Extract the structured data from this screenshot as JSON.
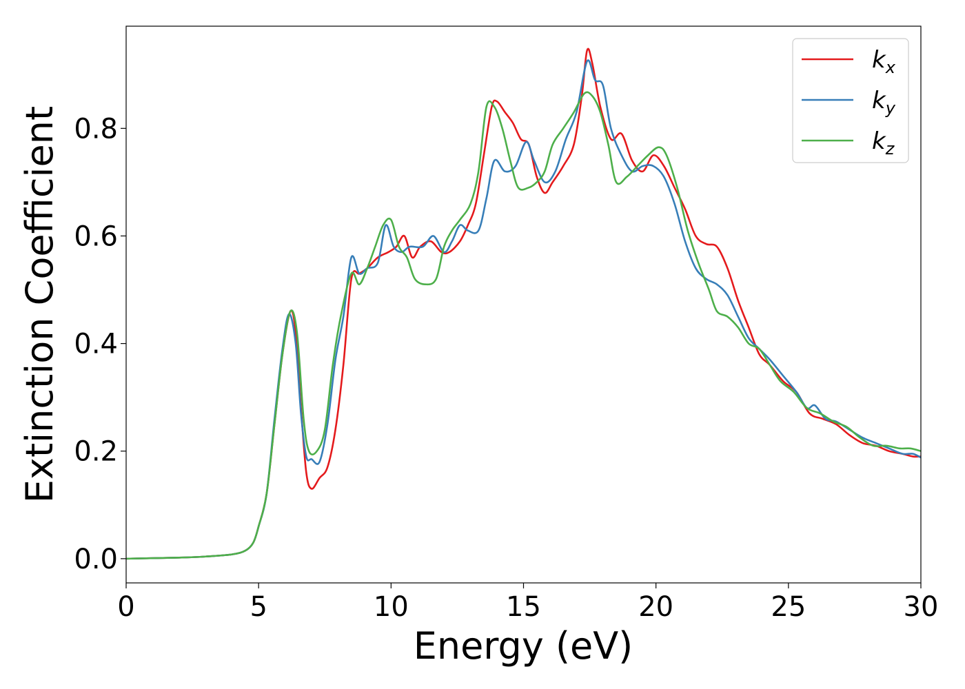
{
  "chart_data": {
    "type": "line",
    "title": "",
    "xlabel": "Energy (eV)",
    "ylabel": "Extinction Coefficient",
    "xlim": [
      0,
      30
    ],
    "ylim": [
      -0.045,
      0.99
    ],
    "xticks": [
      0,
      5,
      10,
      15,
      20,
      25,
      30
    ],
    "xtick_labels": [
      "0",
      "5",
      "10",
      "15",
      "20",
      "25",
      "30"
    ],
    "yticks": [
      0.0,
      0.2,
      0.4,
      0.6,
      0.8
    ],
    "ytick_labels": [
      "0.0",
      "0.2",
      "0.4",
      "0.6",
      "0.8"
    ],
    "grid": false,
    "legend_position": "top-right",
    "series": [
      {
        "name": "k_x",
        "label_main": "k",
        "label_sub": "x",
        "color": "#e41a1c",
        "points": [
          [
            0,
            0
          ],
          [
            2,
            0.002
          ],
          [
            3,
            0.004
          ],
          [
            4,
            0.008
          ],
          [
            4.5,
            0.015
          ],
          [
            4.8,
            0.03
          ],
          [
            5.0,
            0.06
          ],
          [
            5.3,
            0.12
          ],
          [
            5.6,
            0.25
          ],
          [
            5.9,
            0.38
          ],
          [
            6.2,
            0.46
          ],
          [
            6.4,
            0.42
          ],
          [
            6.6,
            0.28
          ],
          [
            6.8,
            0.16
          ],
          [
            7.0,
            0.13
          ],
          [
            7.3,
            0.15
          ],
          [
            7.6,
            0.17
          ],
          [
            7.9,
            0.24
          ],
          [
            8.2,
            0.36
          ],
          [
            8.5,
            0.52
          ],
          [
            8.8,
            0.53
          ],
          [
            9.1,
            0.54
          ],
          [
            9.5,
            0.56
          ],
          [
            9.9,
            0.57
          ],
          [
            10.2,
            0.58
          ],
          [
            10.5,
            0.6
          ],
          [
            10.8,
            0.56
          ],
          [
            11.1,
            0.58
          ],
          [
            11.5,
            0.59
          ],
          [
            11.9,
            0.57
          ],
          [
            12.2,
            0.57
          ],
          [
            12.6,
            0.59
          ],
          [
            12.9,
            0.62
          ],
          [
            13.2,
            0.66
          ],
          [
            13.5,
            0.75
          ],
          [
            13.8,
            0.84
          ],
          [
            14.0,
            0.85
          ],
          [
            14.3,
            0.83
          ],
          [
            14.6,
            0.81
          ],
          [
            14.9,
            0.78
          ],
          [
            15.2,
            0.77
          ],
          [
            15.5,
            0.71
          ],
          [
            15.8,
            0.68
          ],
          [
            16.1,
            0.7
          ],
          [
            16.5,
            0.73
          ],
          [
            16.9,
            0.77
          ],
          [
            17.2,
            0.86
          ],
          [
            17.4,
            0.945
          ],
          [
            17.6,
            0.92
          ],
          [
            17.9,
            0.84
          ],
          [
            18.3,
            0.78
          ],
          [
            18.7,
            0.79
          ],
          [
            19.1,
            0.74
          ],
          [
            19.5,
            0.72
          ],
          [
            19.9,
            0.75
          ],
          [
            20.3,
            0.73
          ],
          [
            20.7,
            0.69
          ],
          [
            21.1,
            0.65
          ],
          [
            21.5,
            0.6
          ],
          [
            21.9,
            0.585
          ],
          [
            22.3,
            0.58
          ],
          [
            22.7,
            0.54
          ],
          [
            23.1,
            0.48
          ],
          [
            23.5,
            0.43
          ],
          [
            23.9,
            0.38
          ],
          [
            24.3,
            0.36
          ],
          [
            24.8,
            0.33
          ],
          [
            25.3,
            0.31
          ],
          [
            25.8,
            0.27
          ],
          [
            26.3,
            0.26
          ],
          [
            26.8,
            0.25
          ],
          [
            27.3,
            0.23
          ],
          [
            27.8,
            0.215
          ],
          [
            28.3,
            0.21
          ],
          [
            28.8,
            0.2
          ],
          [
            29.3,
            0.195
          ],
          [
            29.7,
            0.19
          ],
          [
            30,
            0.19
          ]
        ]
      },
      {
        "name": "k_y",
        "label_main": "k",
        "label_sub": "y",
        "color": "#377eb8",
        "points": [
          [
            0,
            0
          ],
          [
            2,
            0.002
          ],
          [
            3,
            0.004
          ],
          [
            4,
            0.008
          ],
          [
            4.5,
            0.015
          ],
          [
            4.8,
            0.03
          ],
          [
            5.0,
            0.06
          ],
          [
            5.3,
            0.12
          ],
          [
            5.6,
            0.26
          ],
          [
            5.9,
            0.39
          ],
          [
            6.15,
            0.455
          ],
          [
            6.4,
            0.4
          ],
          [
            6.6,
            0.27
          ],
          [
            6.8,
            0.19
          ],
          [
            7.0,
            0.185
          ],
          [
            7.3,
            0.18
          ],
          [
            7.6,
            0.25
          ],
          [
            7.9,
            0.37
          ],
          [
            8.2,
            0.45
          ],
          [
            8.5,
            0.56
          ],
          [
            8.8,
            0.53
          ],
          [
            9.1,
            0.54
          ],
          [
            9.5,
            0.55
          ],
          [
            9.8,
            0.62
          ],
          [
            10.1,
            0.58
          ],
          [
            10.4,
            0.57
          ],
          [
            10.7,
            0.58
          ],
          [
            11.2,
            0.58
          ],
          [
            11.6,
            0.6
          ],
          [
            12.0,
            0.57
          ],
          [
            12.3,
            0.59
          ],
          [
            12.6,
            0.62
          ],
          [
            12.9,
            0.61
          ],
          [
            13.3,
            0.61
          ],
          [
            13.6,
            0.67
          ],
          [
            13.9,
            0.74
          ],
          [
            14.3,
            0.72
          ],
          [
            14.7,
            0.73
          ],
          [
            15.1,
            0.775
          ],
          [
            15.4,
            0.74
          ],
          [
            15.8,
            0.7
          ],
          [
            16.2,
            0.72
          ],
          [
            16.6,
            0.78
          ],
          [
            17.0,
            0.83
          ],
          [
            17.4,
            0.925
          ],
          [
            17.7,
            0.89
          ],
          [
            18.0,
            0.88
          ],
          [
            18.3,
            0.8
          ],
          [
            18.7,
            0.75
          ],
          [
            19.1,
            0.72
          ],
          [
            19.5,
            0.73
          ],
          [
            19.9,
            0.73
          ],
          [
            20.3,
            0.71
          ],
          [
            20.7,
            0.66
          ],
          [
            21.1,
            0.59
          ],
          [
            21.5,
            0.54
          ],
          [
            21.9,
            0.52
          ],
          [
            22.3,
            0.51
          ],
          [
            22.7,
            0.49
          ],
          [
            23.1,
            0.45
          ],
          [
            23.5,
            0.41
          ],
          [
            23.9,
            0.39
          ],
          [
            24.3,
            0.37
          ],
          [
            24.8,
            0.34
          ],
          [
            25.3,
            0.31
          ],
          [
            25.7,
            0.28
          ],
          [
            26.0,
            0.285
          ],
          [
            26.4,
            0.26
          ],
          [
            26.8,
            0.255
          ],
          [
            27.3,
            0.24
          ],
          [
            27.8,
            0.225
          ],
          [
            28.3,
            0.215
          ],
          [
            28.8,
            0.205
          ],
          [
            29.3,
            0.195
          ],
          [
            29.7,
            0.195
          ],
          [
            30,
            0.188
          ]
        ]
      },
      {
        "name": "k_z",
        "label_main": "k",
        "label_sub": "z",
        "color": "#4daf4a",
        "points": [
          [
            0,
            0
          ],
          [
            2,
            0.002
          ],
          [
            3,
            0.004
          ],
          [
            4,
            0.008
          ],
          [
            4.5,
            0.015
          ],
          [
            4.8,
            0.03
          ],
          [
            5.0,
            0.06
          ],
          [
            5.3,
            0.12
          ],
          [
            5.6,
            0.25
          ],
          [
            5.9,
            0.38
          ],
          [
            6.2,
            0.46
          ],
          [
            6.45,
            0.42
          ],
          [
            6.7,
            0.26
          ],
          [
            6.9,
            0.2
          ],
          [
            7.2,
            0.2
          ],
          [
            7.5,
            0.24
          ],
          [
            7.8,
            0.36
          ],
          [
            8.1,
            0.45
          ],
          [
            8.5,
            0.53
          ],
          [
            8.8,
            0.51
          ],
          [
            9.1,
            0.54
          ],
          [
            9.4,
            0.58
          ],
          [
            9.7,
            0.62
          ],
          [
            10.0,
            0.63
          ],
          [
            10.3,
            0.58
          ],
          [
            10.6,
            0.56
          ],
          [
            10.9,
            0.52
          ],
          [
            11.3,
            0.51
          ],
          [
            11.7,
            0.52
          ],
          [
            12.0,
            0.58
          ],
          [
            12.3,
            0.61
          ],
          [
            12.6,
            0.63
          ],
          [
            13.0,
            0.66
          ],
          [
            13.3,
            0.72
          ],
          [
            13.6,
            0.84
          ],
          [
            13.9,
            0.84
          ],
          [
            14.2,
            0.8
          ],
          [
            14.5,
            0.74
          ],
          [
            14.8,
            0.69
          ],
          [
            15.2,
            0.69
          ],
          [
            15.5,
            0.7
          ],
          [
            15.8,
            0.72
          ],
          [
            16.1,
            0.77
          ],
          [
            16.5,
            0.8
          ],
          [
            16.9,
            0.83
          ],
          [
            17.3,
            0.865
          ],
          [
            17.6,
            0.86
          ],
          [
            17.9,
            0.83
          ],
          [
            18.2,
            0.77
          ],
          [
            18.5,
            0.7
          ],
          [
            18.9,
            0.71
          ],
          [
            19.3,
            0.73
          ],
          [
            19.7,
            0.75
          ],
          [
            20.1,
            0.765
          ],
          [
            20.4,
            0.75
          ],
          [
            20.8,
            0.69
          ],
          [
            21.2,
            0.61
          ],
          [
            21.6,
            0.55
          ],
          [
            22.0,
            0.5
          ],
          [
            22.3,
            0.46
          ],
          [
            22.7,
            0.45
          ],
          [
            23.1,
            0.43
          ],
          [
            23.5,
            0.4
          ],
          [
            23.9,
            0.39
          ],
          [
            24.3,
            0.36
          ],
          [
            24.7,
            0.33
          ],
          [
            25.2,
            0.31
          ],
          [
            25.7,
            0.28
          ],
          [
            26.2,
            0.27
          ],
          [
            26.7,
            0.255
          ],
          [
            27.2,
            0.245
          ],
          [
            27.7,
            0.225
          ],
          [
            28.2,
            0.21
          ],
          [
            28.7,
            0.21
          ],
          [
            29.2,
            0.205
          ],
          [
            29.6,
            0.205
          ],
          [
            30,
            0.2
          ]
        ]
      }
    ]
  }
}
